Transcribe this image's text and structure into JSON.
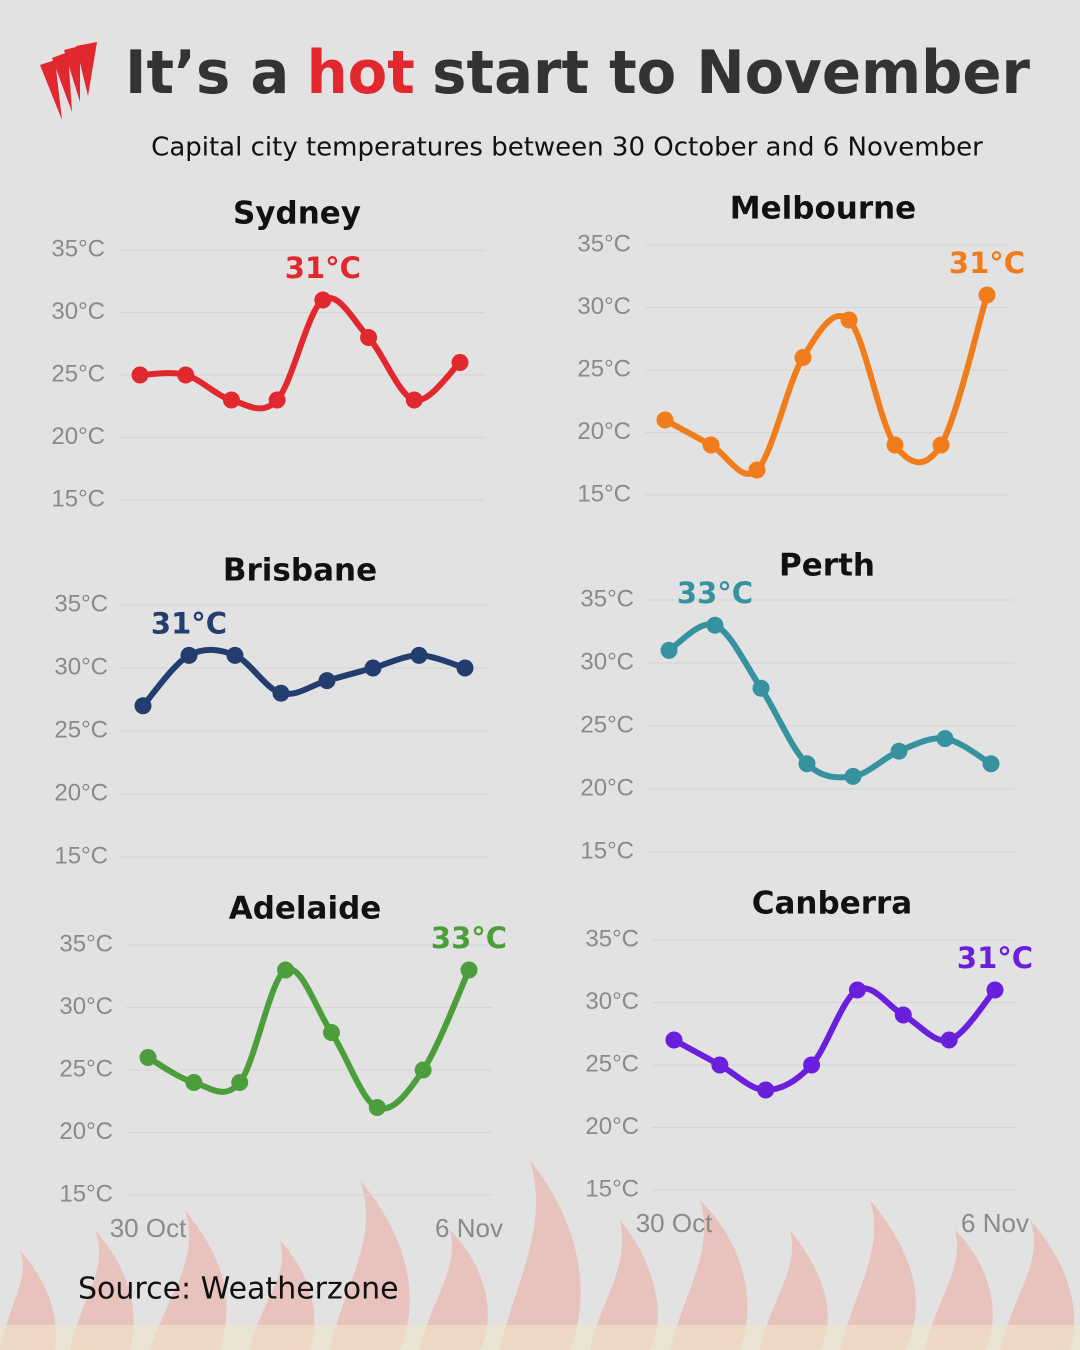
{
  "header": {
    "title": [
      "It’s a",
      "hot",
      "start to November"
    ],
    "subtitle": "Capital city temperatures between 30 October and 6 November",
    "source": "Source: Weatherzone"
  },
  "chart_data": [
    {
      "type": "line",
      "title": "Sydney",
      "color": "#e0282e",
      "values": [
        25,
        25,
        23,
        23,
        31,
        28,
        23,
        26
      ],
      "value_labels": [
        null,
        null,
        null,
        null,
        "31°C",
        null,
        null,
        null
      ],
      "ylim": [
        15,
        35
      ],
      "yticks": [
        {
          "value": 15,
          "label": "15°C"
        },
        {
          "value": 20,
          "label": "20°C"
        },
        {
          "value": 25,
          "label": "25°C"
        },
        {
          "value": 30,
          "label": "30°C"
        },
        {
          "value": 35,
          "label": "35°C"
        }
      ],
      "grid": true
    },
    {
      "type": "line",
      "title": "Melbourne",
      "color": "#f07c1b",
      "values": [
        21,
        19,
        17,
        26,
        29,
        19,
        19,
        31
      ],
      "value_labels": [
        null,
        null,
        null,
        null,
        null,
        null,
        null,
        "31°C"
      ],
      "ylim": [
        15,
        35
      ],
      "yticks": [
        {
          "value": 15,
          "label": "15°C"
        },
        {
          "value": 20,
          "label": "20°C"
        },
        {
          "value": 25,
          "label": "25°C"
        },
        {
          "value": 30,
          "label": "30°C"
        },
        {
          "value": 35,
          "label": "35°C"
        }
      ],
      "grid": true
    },
    {
      "type": "line",
      "title": "Brisbane",
      "color": "#233e6e",
      "values": [
        27,
        31,
        31,
        28,
        29,
        30,
        31,
        30
      ],
      "value_labels": [
        null,
        "31°C",
        null,
        null,
        null,
        null,
        null,
        null
      ],
      "ylim": [
        15,
        35
      ],
      "yticks": [
        {
          "value": 15,
          "label": "15°C"
        },
        {
          "value": 20,
          "label": "20°C"
        },
        {
          "value": 25,
          "label": "25°C"
        },
        {
          "value": 30,
          "label": "30°C"
        },
        {
          "value": 35,
          "label": "35°C"
        }
      ],
      "grid": true
    },
    {
      "type": "line",
      "title": "Perth",
      "color": "#35929e",
      "values": [
        31,
        33,
        28,
        22,
        21,
        23,
        24,
        22
      ],
      "value_labels": [
        null,
        "33°C",
        null,
        null,
        null,
        null,
        null,
        null
      ],
      "ylim": [
        15,
        35
      ],
      "yticks": [
        {
          "value": 15,
          "label": "15°C"
        },
        {
          "value": 20,
          "label": "20°C"
        },
        {
          "value": 25,
          "label": "25°C"
        },
        {
          "value": 30,
          "label": "30°C"
        },
        {
          "value": 35,
          "label": "35°C"
        }
      ],
      "grid": true
    },
    {
      "type": "line",
      "title": "Adelaide",
      "color": "#4c9e3c",
      "categories": [
        "30 Oct",
        null,
        null,
        null,
        null,
        null,
        null,
        "6 Nov"
      ],
      "values": [
        26,
        24,
        24,
        33,
        28,
        22,
        25,
        33
      ],
      "value_labels": [
        null,
        null,
        null,
        null,
        null,
        null,
        null,
        "33°C"
      ],
      "ylim": [
        15,
        35
      ],
      "yticks": [
        {
          "value": 15,
          "label": "15°C"
        },
        {
          "value": 20,
          "label": "20°C"
        },
        {
          "value": 25,
          "label": "25°C"
        },
        {
          "value": 30,
          "label": "30°C"
        },
        {
          "value": 35,
          "label": "35°C"
        }
      ],
      "grid": true
    },
    {
      "type": "line",
      "title": "Canberra",
      "color": "#6a1fdc",
      "categories": [
        "30 Oct",
        null,
        null,
        null,
        null,
        null,
        null,
        "6 Nov"
      ],
      "values": [
        27,
        25,
        23,
        25,
        31,
        29,
        27,
        31
      ],
      "value_labels": [
        null,
        null,
        null,
        null,
        null,
        null,
        null,
        "31°C"
      ],
      "ylim": [
        15,
        35
      ],
      "yticks": [
        {
          "value": 15,
          "label": "15°C"
        },
        {
          "value": 20,
          "label": "20°C"
        },
        {
          "value": 25,
          "label": "25°C"
        },
        {
          "value": 30,
          "label": "30°C"
        },
        {
          "value": 35,
          "label": "35°C"
        }
      ],
      "grid": true
    }
  ]
}
